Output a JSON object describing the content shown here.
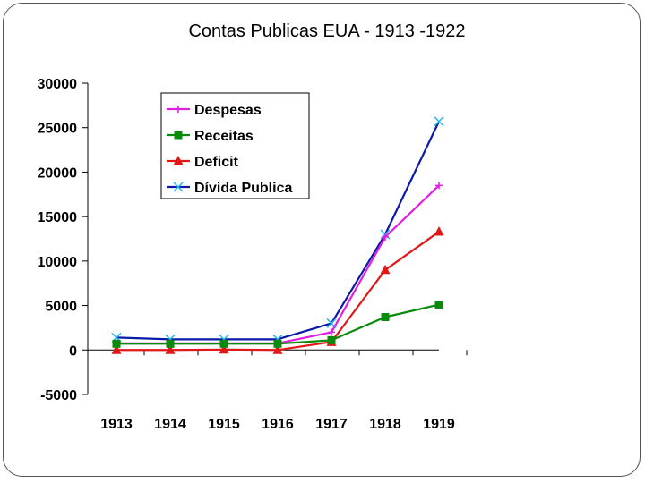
{
  "chart_data": {
    "type": "line",
    "title": "Contas Publicas EUA - 1913 -1922",
    "categories": [
      "1913",
      "1914",
      "1915",
      "1916",
      "1917",
      "1918",
      "1919"
    ],
    "ylim": [
      -5000,
      30000
    ],
    "yticks": [
      "30000",
      "25000",
      "20000",
      "15000",
      "10000",
      "5000",
      "0",
      "-5000"
    ],
    "ytick_values": [
      30000,
      25000,
      20000,
      15000,
      10000,
      5000,
      0,
      -5000
    ],
    "legend_position": "top-left",
    "series": [
      {
        "name": "Despesas",
        "color": "#e020e0",
        "marker": "plus",
        "values": [
          750,
          750,
          750,
          750,
          2000,
          12700,
          18500
        ]
      },
      {
        "name": "Receitas",
        "color": "#0a8a0a",
        "marker": "square",
        "values": [
          700,
          700,
          700,
          700,
          1100,
          3700,
          5100
        ]
      },
      {
        "name": "Deficit",
        "color": "#e01818",
        "marker": "triangle",
        "values": [
          0,
          0,
          50,
          0,
          900,
          9000,
          13300
        ]
      },
      {
        "name": "Dívida Publica",
        "color": "#0a1aa8",
        "marker": "x",
        "marker_color": "#20b8f0",
        "values": [
          1400,
          1200,
          1200,
          1200,
          3000,
          13000,
          25700
        ]
      }
    ]
  }
}
